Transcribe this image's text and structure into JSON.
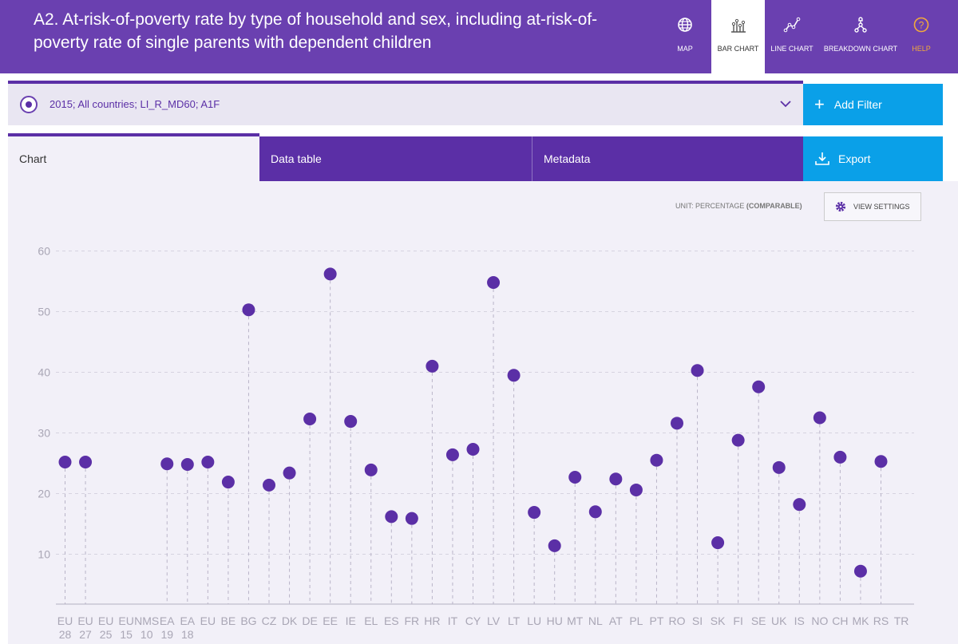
{
  "header": {
    "title": "A2. At-risk-of-poverty rate by type of household and sex, including at-risk-of-poverty rate of single parents with dependent children",
    "nav": [
      {
        "label": "MAP",
        "icon": "globe-icon"
      },
      {
        "label": "BAR CHART",
        "icon": "bar-chart-icon"
      },
      {
        "label": "LINE CHART",
        "icon": "line-chart-icon"
      },
      {
        "label": "BREAKDOWN CHART",
        "icon": "breakdown-icon"
      },
      {
        "label": "HELP",
        "icon": "help-icon"
      }
    ]
  },
  "filter": {
    "text": "2015; All countries; LI_R_MD60; A1F",
    "add_label": "Add Filter"
  },
  "tabs": {
    "chart": "Chart",
    "data_table": "Data table",
    "metadata": "Metadata",
    "export": "Export"
  },
  "toolbar": {
    "unit_prefix": "UNIT: PERCENTAGE",
    "unit_suffix": "(COMPARABLE)",
    "view_settings": "VIEW SETTINGS"
  },
  "colors": {
    "brand": "#6a40b0",
    "accent": "#0aa0e8",
    "dot": "#5b2fa6"
  },
  "chart_data": {
    "type": "scatter",
    "ylim": [
      0,
      60
    ],
    "yticks": [
      10,
      20,
      30,
      40,
      50,
      60
    ],
    "grid": true,
    "categories": [
      "EU 28",
      "EU 27",
      "EU 25",
      "EU 15",
      "NMS 10",
      "EA 19",
      "EA 18",
      "EU",
      "BE",
      "BG",
      "CZ",
      "DK",
      "DE",
      "EE",
      "IE",
      "EL",
      "ES",
      "FR",
      "HR",
      "IT",
      "CY",
      "LV",
      "LT",
      "LU",
      "HU",
      "MT",
      "NL",
      "AT",
      "PL",
      "PT",
      "RO",
      "SI",
      "SK",
      "FI",
      "SE",
      "UK",
      "IS",
      "NO",
      "CH",
      "MK",
      "RS",
      "TR"
    ],
    "values": [
      25.2,
      25.2,
      null,
      null,
      null,
      24.9,
      24.8,
      25.2,
      21.9,
      50.3,
      21.4,
      23.4,
      32.3,
      56.2,
      31.9,
      23.9,
      16.2,
      15.9,
      41.0,
      26.4,
      27.3,
      54.8,
      39.5,
      16.9,
      11.4,
      22.7,
      17.0,
      22.4,
      20.6,
      25.5,
      31.6,
      40.3,
      11.9,
      28.8,
      37.6,
      24.3,
      18.2,
      32.5,
      26.0,
      7.2,
      25.3,
      null
    ]
  }
}
